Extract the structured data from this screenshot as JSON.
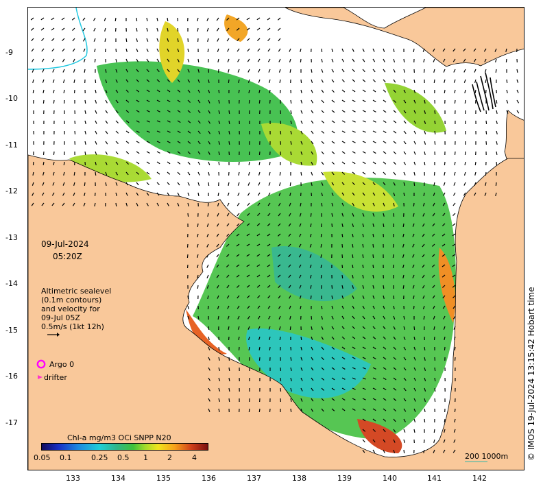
{
  "map": {
    "date": "09-Jul-2024",
    "time": "05:20Z",
    "altimetry_note": [
      "Altimetric sealevel",
      "(0.1m contours)",
      "and velocity for",
      "09-Jul 05Z",
      "0.5m/s (1kt 12h)"
    ],
    "legend_argo": "Argo 0",
    "legend_drifter": "drifter",
    "colorbar_title": "Chl-a mg/m3 OCi SNPP N20",
    "colorbar_ticks": [
      "0.05",
      "0.1",
      "0.25",
      "0.5",
      "1",
      "2",
      "4"
    ],
    "colorbar_values": [
      0.05,
      0.1,
      0.25,
      0.5,
      1,
      2,
      4
    ],
    "scale_label": "200  1000m",
    "timestamp": "© IMOS 19-Jul-2024 13:15:42 Hobart time",
    "lat_ticks": [
      "-9",
      "-10",
      "-11",
      "-12",
      "-13",
      "-14",
      "-15",
      "-16",
      "-17"
    ],
    "lon_ticks": [
      "133",
      "134",
      "135",
      "136",
      "137",
      "138",
      "139",
      "140",
      "141",
      "142"
    ],
    "colors": {
      "land": "#f9c89a",
      "argo": "#ff00ff",
      "drifter": "#ff33cc",
      "river": "#22c8e0",
      "scale_line": "#2bb5a8"
    }
  }
}
